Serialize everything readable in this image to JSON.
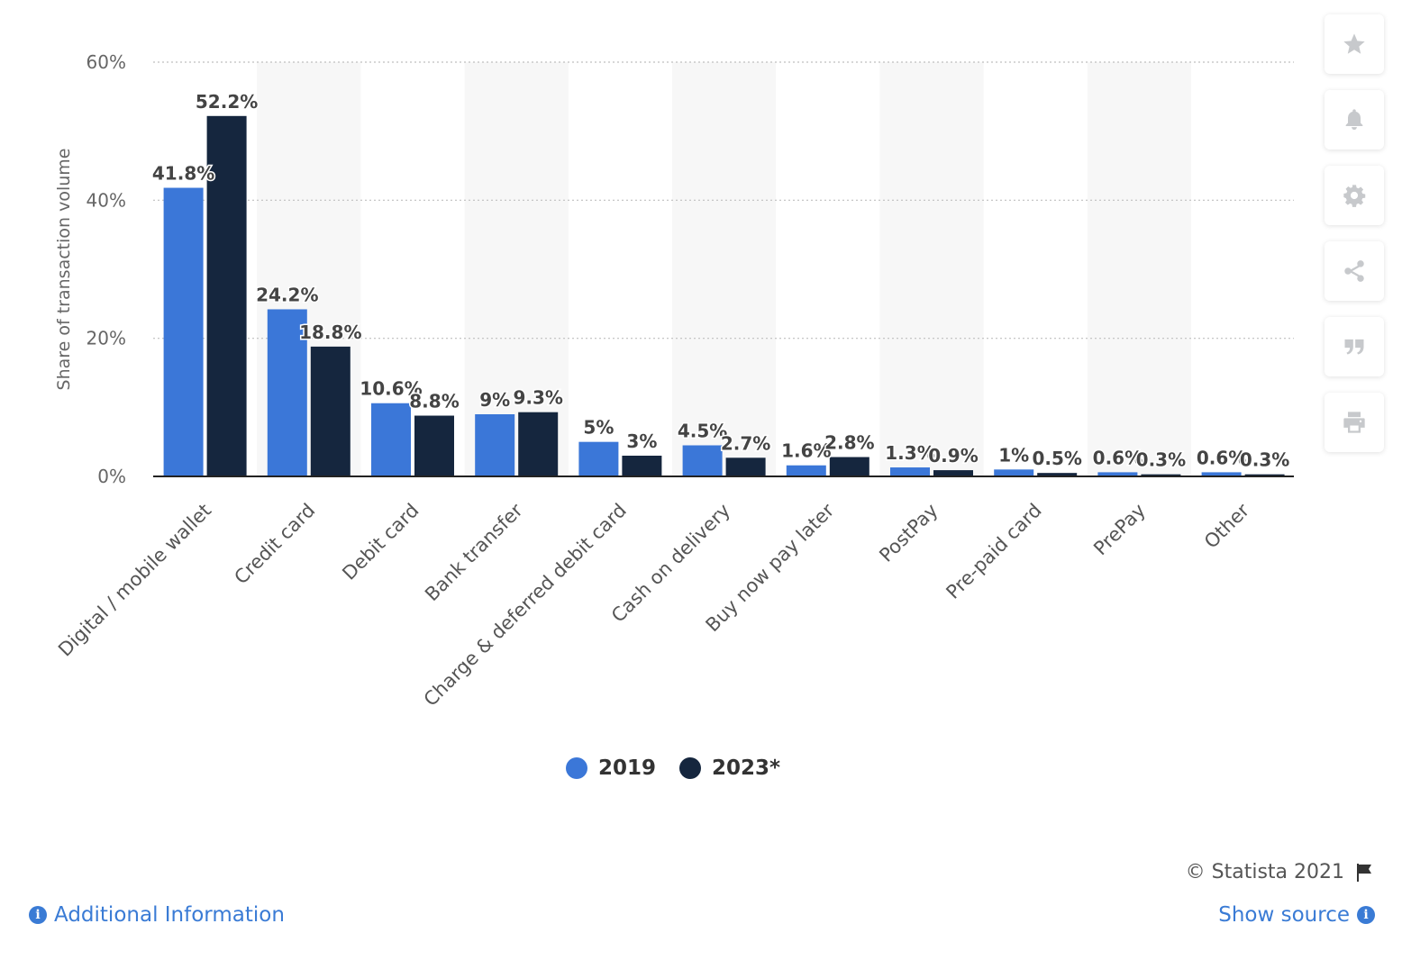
{
  "chart_data": {
    "type": "bar",
    "categories": [
      "Digital / mobile wallet",
      "Credit card",
      "Debit card",
      "Bank transfer",
      "Charge & deferred debit card",
      "Cash on delivery",
      "Buy now pay later",
      "PostPay",
      "Pre-paid card",
      "PrePay",
      "Other"
    ],
    "series": [
      {
        "name": "2019",
        "values": [
          41.8,
          24.2,
          10.6,
          9,
          5,
          4.5,
          1.6,
          1.3,
          1,
          0.6,
          0.6
        ],
        "labels": [
          "41.8%",
          "24.2%",
          "10.6%",
          "9%",
          "5%",
          "4.5%",
          "1.6%",
          "1.3%",
          "1%",
          "0.6%",
          "0.6%"
        ],
        "color": "#3b77d8"
      },
      {
        "name": "2023*",
        "values": [
          52.2,
          18.8,
          8.8,
          9.3,
          3,
          2.7,
          2.8,
          0.9,
          0.5,
          0.3,
          0.3
        ],
        "labels": [
          "52.2%",
          "18.8%",
          "8.8%",
          "9.3%",
          "3%",
          "2.7%",
          "2.8%",
          "0.9%",
          "0.5%",
          "0.3%",
          "0.3%"
        ],
        "color": "#15263e"
      }
    ],
    "ylabel": "Share of transaction volume",
    "ylim": [
      0,
      60
    ],
    "yticks": [
      0,
      20,
      40,
      60
    ],
    "ytick_labels": [
      "0%",
      "20%",
      "40%",
      "60%"
    ],
    "grid": true,
    "legend_position": "bottom-center"
  },
  "legend": {
    "items": [
      {
        "label": "2019",
        "color": "#3b77d8"
      },
      {
        "label": "2023*",
        "color": "#15263e"
      }
    ]
  },
  "toolbar": {
    "icons": [
      "star-icon",
      "bell-icon",
      "gear-icon",
      "share-icon",
      "quote-icon",
      "print-icon"
    ]
  },
  "footer": {
    "copyright": "© Statista 2021",
    "additional_info": "Additional Information",
    "show_source": "Show source"
  }
}
